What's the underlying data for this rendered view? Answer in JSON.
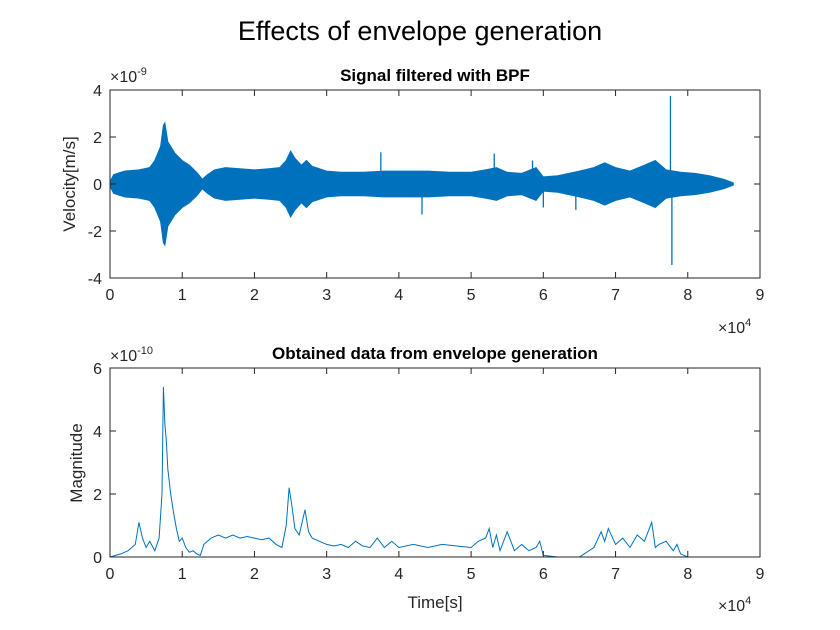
{
  "figure_title": "Effects of envelope generation",
  "chart_data": [
    {
      "type": "line",
      "title": "Signal filtered with BPF",
      "xlabel": "",
      "ylabel": "Velocity[m/s]",
      "xlim": [
        0,
        9
      ],
      "ylim": [
        -4,
        4
      ],
      "x_exponent": "4",
      "y_exponent": "-9",
      "x_ticks": [
        "0",
        "1",
        "2",
        "3",
        "4",
        "5",
        "6",
        "7",
        "8",
        "9"
      ],
      "y_ticks": [
        "-4",
        "-2",
        "0",
        "2",
        "4"
      ],
      "x_scale_label": "×10",
      "y_scale_label": "×10",
      "color": "#0072BD",
      "envelope_points": [
        [
          0.0,
          0.1
        ],
        [
          0.05,
          0.4
        ],
        [
          0.2,
          0.55
        ],
        [
          0.4,
          0.6
        ],
        [
          0.55,
          0.7
        ],
        [
          0.62,
          1.0
        ],
        [
          0.7,
          1.6
        ],
        [
          0.74,
          2.5
        ],
        [
          0.76,
          2.6
        ],
        [
          0.8,
          1.8
        ],
        [
          0.9,
          1.3
        ],
        [
          1.0,
          1.0
        ],
        [
          1.1,
          0.8
        ],
        [
          1.2,
          0.5
        ],
        [
          1.28,
          0.2
        ],
        [
          1.35,
          0.4
        ],
        [
          1.45,
          0.6
        ],
        [
          1.6,
          0.7
        ],
        [
          1.8,
          0.65
        ],
        [
          2.0,
          0.6
        ],
        [
          2.2,
          0.65
        ],
        [
          2.35,
          0.7
        ],
        [
          2.44,
          1.0
        ],
        [
          2.5,
          1.4
        ],
        [
          2.56,
          1.1
        ],
        [
          2.65,
          0.8
        ],
        [
          2.72,
          1.0
        ],
        [
          2.8,
          0.75
        ],
        [
          3.0,
          0.55
        ],
        [
          3.2,
          0.5
        ],
        [
          3.5,
          0.5
        ],
        [
          3.8,
          0.55
        ],
        [
          4.1,
          0.55
        ],
        [
          4.4,
          0.55
        ],
        [
          4.7,
          0.5
        ],
        [
          5.0,
          0.5
        ],
        [
          5.2,
          0.6
        ],
        [
          5.35,
          0.7
        ],
        [
          5.5,
          0.5
        ],
        [
          5.7,
          0.45
        ],
        [
          5.9,
          0.7
        ],
        [
          6.0,
          0.3
        ],
        [
          6.2,
          0.35
        ],
        [
          6.5,
          0.55
        ],
        [
          6.7,
          0.7
        ],
        [
          6.85,
          0.9
        ],
        [
          7.0,
          0.7
        ],
        [
          7.2,
          0.55
        ],
        [
          7.4,
          0.8
        ],
        [
          7.55,
          1.0
        ],
        [
          7.7,
          0.6
        ],
        [
          7.9,
          0.5
        ],
        [
          8.1,
          0.45
        ],
        [
          8.3,
          0.35
        ],
        [
          8.5,
          0.2
        ],
        [
          8.63,
          0.05
        ]
      ],
      "spikes": [
        {
          "x": 7.76,
          "y": 3.75
        },
        {
          "x": 7.78,
          "y": -3.45
        },
        {
          "x": 3.75,
          "y": 1.35
        },
        {
          "x": 4.32,
          "y": -1.3
        },
        {
          "x": 5.32,
          "y": 1.3
        },
        {
          "x": 5.85,
          "y": 1.0
        },
        {
          "x": 6.45,
          "y": -1.1
        },
        {
          "x": 6.0,
          "y": -1.0
        }
      ]
    },
    {
      "type": "line",
      "title": "Obtained data from envelope generation",
      "xlabel": "Time[s]",
      "ylabel": "Magnitude",
      "xlim": [
        0,
        9
      ],
      "ylim": [
        0,
        6
      ],
      "x_exponent": "4",
      "y_exponent": "-10",
      "x_ticks": [
        "0",
        "1",
        "2",
        "3",
        "4",
        "5",
        "6",
        "7",
        "8",
        "9"
      ],
      "y_ticks": [
        "0",
        "2",
        "4",
        "6"
      ],
      "x_scale_label": "×10",
      "y_scale_label": "×10",
      "color": "#0072BD",
      "x": [
        0.0,
        0.15,
        0.25,
        0.35,
        0.4,
        0.45,
        0.5,
        0.55,
        0.62,
        0.68,
        0.72,
        0.74,
        0.76,
        0.78,
        0.8,
        0.84,
        0.88,
        0.92,
        0.96,
        1.0,
        1.05,
        1.1,
        1.15,
        1.2,
        1.25,
        1.3,
        1.4,
        1.5,
        1.6,
        1.7,
        1.8,
        1.9,
        2.0,
        2.1,
        2.2,
        2.3,
        2.38,
        2.44,
        2.48,
        2.52,
        2.56,
        2.62,
        2.66,
        2.7,
        2.75,
        2.8,
        2.9,
        3.0,
        3.1,
        3.2,
        3.3,
        3.4,
        3.5,
        3.6,
        3.7,
        3.8,
        3.9,
        4.0,
        4.2,
        4.4,
        4.6,
        4.8,
        5.0,
        5.1,
        5.2,
        5.25,
        5.3,
        5.35,
        5.4,
        5.5,
        5.6,
        5.7,
        5.8,
        5.9,
        5.95,
        6.0,
        6.2,
        6.5,
        6.7,
        6.8,
        6.85,
        6.9,
        7.0,
        7.1,
        7.2,
        7.3,
        7.4,
        7.5,
        7.55,
        7.6,
        7.7,
        7.8,
        7.85,
        7.9,
        8.0,
        8.2,
        8.63
      ],
      "y": [
        0.0,
        0.1,
        0.2,
        0.4,
        1.1,
        0.6,
        0.3,
        0.5,
        0.2,
        0.6,
        2.0,
        5.4,
        4.2,
        3.7,
        2.8,
        2.0,
        1.4,
        0.9,
        0.5,
        0.6,
        0.3,
        0.15,
        0.2,
        0.1,
        0.05,
        0.4,
        0.6,
        0.7,
        0.6,
        0.7,
        0.6,
        0.65,
        0.6,
        0.55,
        0.6,
        0.4,
        0.3,
        1.0,
        2.2,
        1.6,
        0.9,
        0.7,
        1.1,
        1.5,
        0.8,
        0.6,
        0.5,
        0.4,
        0.35,
        0.4,
        0.3,
        0.5,
        0.35,
        0.3,
        0.6,
        0.3,
        0.5,
        0.3,
        0.4,
        0.3,
        0.4,
        0.35,
        0.3,
        0.5,
        0.6,
        0.9,
        0.3,
        0.7,
        0.2,
        0.8,
        0.2,
        0.4,
        0.2,
        0.3,
        0.5,
        0.05,
        0.0,
        0.0,
        0.3,
        0.8,
        0.5,
        0.9,
        0.4,
        0.6,
        0.3,
        0.7,
        0.5,
        1.1,
        0.3,
        0.4,
        0.5,
        0.2,
        0.4,
        0.1,
        0.0,
        0.0,
        0.0
      ]
    }
  ]
}
